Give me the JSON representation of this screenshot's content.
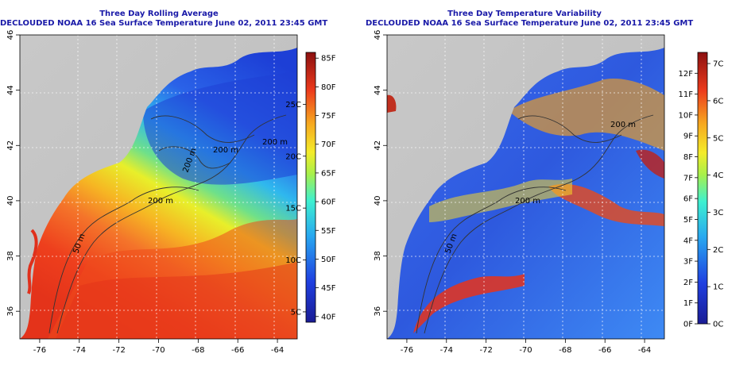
{
  "panels": [
    {
      "title": "Three Day Rolling Average",
      "subtitle": "DECLOUDED NOAA 16 Sea Surface Temperature June 02, 2011 23:45 GMT",
      "contour_labels": [
        "200 m",
        "200 m",
        "200 m",
        "200 m",
        "50 m"
      ],
      "colorbar": {
        "left_ticks": [
          "5C",
          "10C",
          "15C",
          "20C",
          "25C"
        ],
        "right_ticks": [
          "40F",
          "45F",
          "50F",
          "55F",
          "60F",
          "65F",
          "70F",
          "75F",
          "80F",
          "85F"
        ]
      }
    },
    {
      "title": "Three Day Temperature Variability",
      "subtitle": "DECLOUDED NOAA 16 Sea Surface Temperature June 02, 2011 23:45 GMT",
      "contour_labels": [
        "200 m",
        "200 m",
        "50 m"
      ],
      "colorbar": {
        "left_ticks": [
          "0F",
          "1F",
          "2F",
          "3F",
          "4F",
          "5F",
          "6F",
          "7F",
          "8F",
          "9F",
          "10F",
          "11F",
          "12F"
        ],
        "right_ticks": [
          "0C",
          "1C",
          "2C",
          "3C",
          "4C",
          "5C",
          "6C",
          "7C"
        ]
      }
    }
  ],
  "chart_data": [
    {
      "type": "heatmap",
      "title": "Three Day Rolling Average",
      "subtitle": "DECLOUDED NOAA 16 Sea Surface Temperature June 02, 2011 23:45 GMT",
      "x_ticks": [
        "-76",
        "-74",
        "-72",
        "-70",
        "-68",
        "-66",
        "-64"
      ],
      "y_ticks": [
        "36",
        "38",
        "40",
        "42",
        "44",
        "46"
      ],
      "xlim": [
        -77,
        -63
      ],
      "ylim": [
        35,
        46
      ],
      "grid": true,
      "colorbar": {
        "range_C": [
          4,
          30
        ],
        "range_F": [
          39,
          86
        ]
      },
      "contours": [
        "50 m",
        "200 m"
      ]
    },
    {
      "type": "heatmap",
      "title": "Three Day Temperature Variability",
      "subtitle": "DECLOUDED NOAA 16 Sea Surface Temperature June 02, 2011 23:45 GMT",
      "x_ticks": [
        "-76",
        "-74",
        "-72",
        "-70",
        "-68",
        "-66",
        "-64"
      ],
      "y_ticks": [
        "36",
        "38",
        "40",
        "42",
        "44",
        "46"
      ],
      "xlim": [
        -77,
        -63
      ],
      "ylim": [
        35,
        46
      ],
      "grid": true,
      "colorbar": {
        "range_C": [
          0,
          7.3
        ],
        "range_F": [
          0,
          13
        ]
      },
      "contours": [
        "50 m",
        "200 m"
      ]
    }
  ]
}
